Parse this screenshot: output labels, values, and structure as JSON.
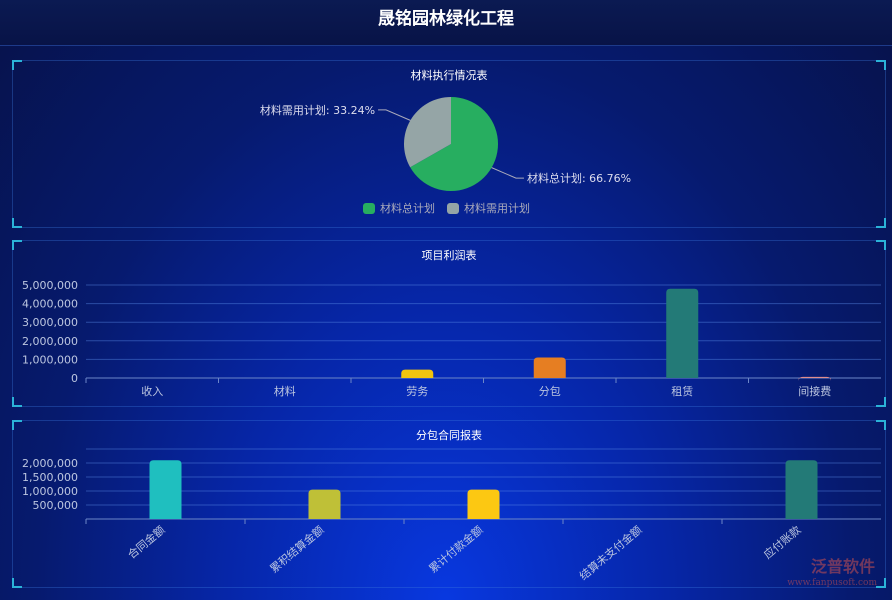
{
  "header": {
    "title": "晟铭园林绿化工程"
  },
  "pie": {
    "title": "材料执行情况表",
    "slices": [
      {
        "name": "材料总计划",
        "value": 66.76,
        "label": "材料总计划: 66.76%",
        "color": "#27ae60"
      },
      {
        "name": "材料需用计划",
        "value": 33.24,
        "label": "材料需用计划: 33.24%",
        "color": "#95a5a6"
      }
    ]
  },
  "chart_data": [
    {
      "type": "bar",
      "title": "项目利润表",
      "categories": [
        "收入",
        "材料",
        "劳务",
        "分包",
        "租赁",
        "间接费"
      ],
      "values": [
        0,
        0,
        450000,
        1100000,
        4800000,
        60000
      ],
      "colors": [
        "#3498db",
        "#3498db",
        "#f1c40f",
        "#e67e22",
        "#237a77",
        "#e08e8e"
      ],
      "yticks": [
        "0",
        "1,000,000",
        "2,000,000",
        "3,000,000",
        "4,000,000",
        "5,000,000"
      ],
      "ylim": [
        0,
        5000000
      ]
    },
    {
      "type": "bar",
      "title": "分包合同报表",
      "categories": [
        "合同金额",
        "累积结算金额",
        "累计付款金额",
        "结算未支付金额",
        "应付账款"
      ],
      "values": [
        2100000,
        1050000,
        1050000,
        0,
        2100000
      ],
      "colors": [
        "#1fbfbf",
        "#bfc037",
        "#fcc812",
        "#3498db",
        "#237a77"
      ],
      "yticks": [
        "500,000",
        "1,000,000",
        "1,500,000",
        "2,000,000"
      ],
      "ylim": [
        0,
        2500000
      ]
    }
  ],
  "watermark": {
    "brand": "泛普软件",
    "url": "www.fanpusoft.com"
  }
}
